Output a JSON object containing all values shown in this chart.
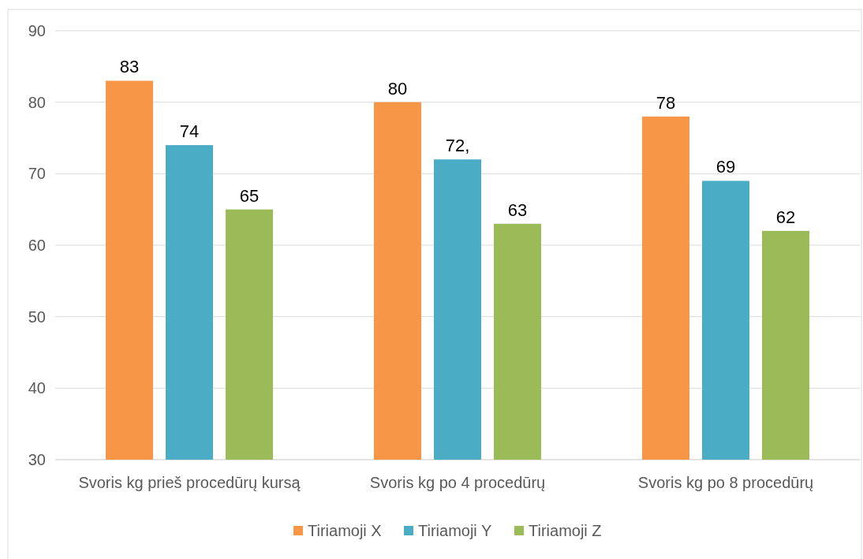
{
  "chart_data": {
    "type": "bar",
    "categories": [
      "Svoris kg prieš procedūrų kursą",
      "Svoris kg po 4 procedūrų",
      "Svoris kg po 8 procedūrų"
    ],
    "series": [
      {
        "name": "Tiriamoji X",
        "color": "#f79646",
        "values": [
          83,
          80,
          78
        ],
        "value_labels": [
          "83",
          "80",
          "78"
        ]
      },
      {
        "name": "Tiriamoji Y",
        "color": "#4bacc6",
        "values": [
          74,
          72,
          69
        ],
        "value_labels": [
          "74",
          "72,",
          "69"
        ]
      },
      {
        "name": "Tiriamoji Z",
        "color": "#9bbb59",
        "values": [
          65,
          63,
          62
        ],
        "value_labels": [
          "65",
          "63",
          "62"
        ]
      }
    ],
    "ylim": [
      30,
      90
    ],
    "yticks": [
      30,
      40,
      50,
      60,
      70,
      80,
      90
    ],
    "grid": "y",
    "legend": "bottom"
  }
}
